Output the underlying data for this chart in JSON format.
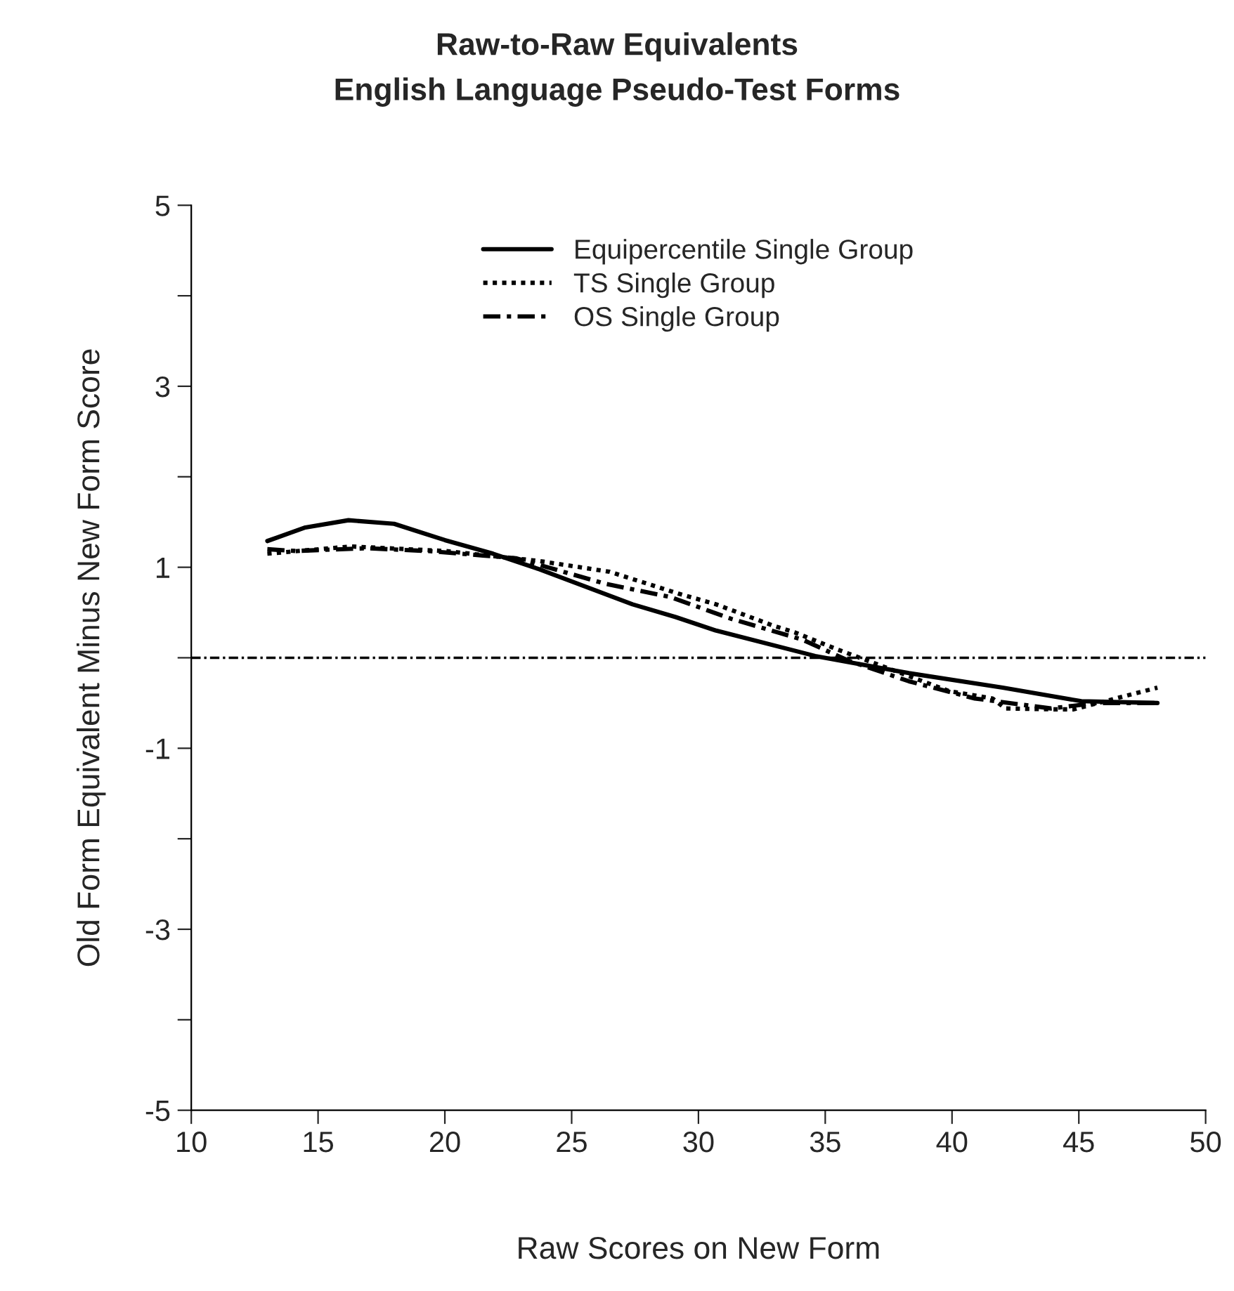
{
  "chart_data": {
    "type": "line",
    "title": "Raw-to-Raw Equivalents",
    "subtitle": "English Language Pseudo-Test Forms",
    "xlabel": "Raw Scores on New Form",
    "ylabel": "Old Form Equivalent Minus New Form Score",
    "xlim": [
      10,
      50
    ],
    "xticks": [
      10,
      15,
      20,
      25,
      30,
      35,
      40,
      45,
      50
    ],
    "ylim": [
      -5,
      5
    ],
    "yticks": [
      {
        "value": -5,
        "label": "-5"
      },
      {
        "value": -4,
        "label": null
      },
      {
        "value": -3,
        "label": "-3"
      },
      {
        "value": -2,
        "label": null
      },
      {
        "value": -1,
        "label": "-1"
      },
      {
        "value": 0,
        "label": null
      },
      1,
      {
        "value": 2,
        "label": null
      },
      3,
      {
        "value": 4,
        "label": null
      },
      5
    ],
    "grid": false,
    "legend": "top",
    "series": [
      {
        "name": "Equipercentile Single Group",
        "color": "#000000",
        "line_style": "solid",
        "x": [
          13,
          14.5,
          16.2,
          18,
          20,
          21.9,
          23.7,
          27.4,
          29.1,
          30.7,
          34.6,
          38.3,
          42,
          45.1,
          48.1
        ],
        "values": [
          1.29,
          1.44,
          1.52,
          1.48,
          1.3,
          1.15,
          0.98,
          0.59,
          0.45,
          0.3,
          0.02,
          -0.17,
          -0.33,
          -0.48,
          -0.5
        ]
      },
      {
        "name": "TS Single Group",
        "color": "#000000",
        "line_style": "dotted",
        "x": [
          13,
          16.3,
          20,
          23.7,
          26.5,
          29.2,
          30.7,
          32.9,
          33.8,
          35.5,
          39.9,
          41.6,
          42.1,
          44,
          44.8,
          48.1
        ],
        "values": [
          1.15,
          1.23,
          1.18,
          1.07,
          0.95,
          0.71,
          0.59,
          0.36,
          0.28,
          0.09,
          -0.37,
          -0.45,
          -0.56,
          -0.57,
          -0.57,
          -0.33
        ]
      },
      {
        "name": "OS Single Group",
        "color": "#000000",
        "line_style": "dashdot",
        "x": [
          13,
          14.1,
          16.9,
          19.3,
          21.5,
          22.8,
          26.3,
          28.9,
          31.3,
          34.1,
          35.9,
          38.3,
          40.9,
          43.9,
          45.7,
          48.1
        ],
        "values": [
          1.2,
          1.18,
          1.21,
          1.18,
          1.13,
          1.1,
          0.82,
          0.67,
          0.43,
          0.2,
          -0.03,
          -0.26,
          -0.45,
          -0.56,
          -0.5,
          -0.5
        ]
      }
    ],
    "ref_lines": [
      {
        "axis": "y",
        "value": 0,
        "color": "#000000",
        "line_style": "dashdot"
      }
    ]
  }
}
